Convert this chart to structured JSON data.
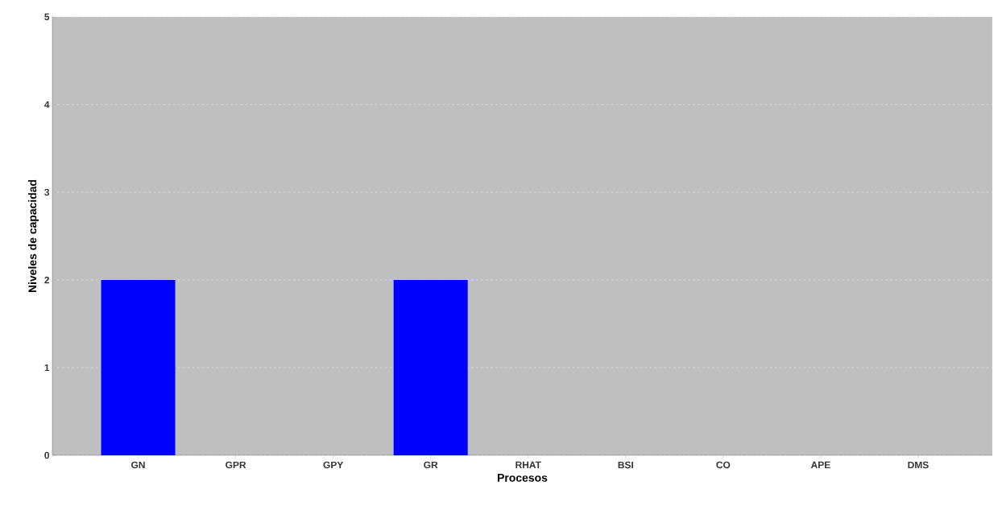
{
  "chart_data": {
    "type": "bar",
    "xlabel": "Procesos",
    "ylabel": "Niveles de capacidad",
    "categories": [
      "GN",
      "GPR",
      "GPY",
      "GR",
      "RHAT",
      "BSI",
      "CO",
      "APE",
      "DMS"
    ],
    "values": [
      2,
      0,
      0,
      2,
      0,
      0,
      0,
      0,
      0
    ],
    "color": "#0000ff",
    "ylim": [
      0,
      5
    ],
    "yticks": [
      0,
      1,
      2,
      3,
      4,
      5
    ],
    "grid": "y"
  }
}
